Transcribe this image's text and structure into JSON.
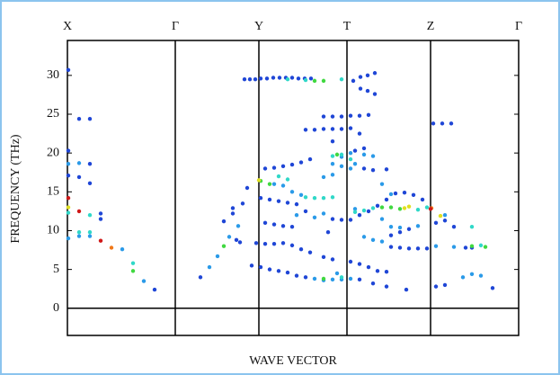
{
  "chart_data": {
    "type": "scatter",
    "xlabel": "WAVE VECTOR",
    "ylabel": "FREQUENCY (THz)",
    "xlim": [
      0,
      5.02
    ],
    "ylim": [
      -3.5,
      34.5
    ],
    "xticks": [
      {
        "value": 0,
        "label": "X"
      },
      {
        "value": 1.2,
        "label": "Γ"
      },
      {
        "value": 2.13,
        "label": "Y"
      },
      {
        "value": 3.11,
        "label": "T"
      },
      {
        "value": 4.04,
        "label": "Z"
      },
      {
        "value": 5.02,
        "label": "Γ"
      }
    ],
    "yticks": [
      0,
      5,
      10,
      15,
      20,
      25,
      30
    ],
    "zero_line": true,
    "series": [
      {
        "color": "#1f46d6",
        "x": [
          0.01,
          0.13,
          0.25,
          0.01,
          0.25,
          0.01,
          0.13,
          0.25,
          0.37,
          0.37,
          0.97,
          1.48,
          1.74,
          1.84,
          1.84,
          1.95,
          2.0,
          1.88,
          1.92,
          1.97,
          2.03,
          2.09,
          2.15,
          2.22,
          2.29,
          2.36,
          2.43,
          2.5,
          2.57,
          2.64,
          2.71,
          3.18,
          3.26,
          3.34,
          3.42,
          3.42,
          3.34,
          3.26,
          2.65,
          2.75,
          2.85,
          2.95,
          2.85,
          2.95,
          3.05,
          3.15,
          3.25,
          3.35,
          3.05,
          3.15,
          3.25,
          4.07,
          4.17,
          4.27,
          2.2,
          2.3,
          2.4,
          2.5,
          2.6,
          2.7,
          3.2,
          3.3,
          2.95,
          3.3,
          3.4,
          3.55,
          2.15,
          2.25,
          2.35,
          2.45,
          2.55,
          2.65,
          2.95,
          3.05,
          3.15,
          2.2,
          2.3,
          2.4,
          2.5,
          2.9,
          2.1,
          2.2,
          2.3,
          2.4,
          2.5,
          2.6,
          2.7,
          2.85,
          2.95,
          2.05,
          2.15,
          2.25,
          2.35,
          2.45,
          2.55,
          2.65,
          3.15,
          3.25,
          3.35,
          3.45,
          3.55,
          3.25,
          3.4,
          3.55,
          3.77,
          3.25,
          3.35,
          3.45,
          3.55,
          3.65,
          3.75,
          3.85,
          3.95,
          3.6,
          3.7,
          3.8,
          4.1,
          4.2,
          4.3,
          4.43,
          4.5,
          4.1,
          4.2,
          4.73,
          3.6,
          3.7,
          3.8,
          3.9,
          4.0
        ],
        "values": [
          30.7,
          24.4,
          24.4,
          20.3,
          18.6,
          17.1,
          16.9,
          16.1,
          12.2,
          11.5,
          2.4,
          4.0,
          11.2,
          12.9,
          12.2,
          13.5,
          15.5,
          8.8,
          8.5,
          29.5,
          29.5,
          29.5,
          29.6,
          29.6,
          29.7,
          29.7,
          29.7,
          29.7,
          29.6,
          29.6,
          29.6,
          29.3,
          29.8,
          30.0,
          30.3,
          27.6,
          28.0,
          28.3,
          23.0,
          23.0,
          23.1,
          23.1,
          24.7,
          24.7,
          24.7,
          24.8,
          24.8,
          24.9,
          23.1,
          23.2,
          22.5,
          23.8,
          23.8,
          23.8,
          18.0,
          18.1,
          18.3,
          18.5,
          18.8,
          19.2,
          20.3,
          20.6,
          21.5,
          18.0,
          17.8,
          17.9,
          14.2,
          14.0,
          13.8,
          13.6,
          13.4,
          12.5,
          11.5,
          11.4,
          11.4,
          11.0,
          10.8,
          10.6,
          10.5,
          9.8,
          8.4,
          8.3,
          8.3,
          8.4,
          8.1,
          7.6,
          7.2,
          6.6,
          6.3,
          5.5,
          5.3,
          5.0,
          4.8,
          4.6,
          4.2,
          4.0,
          6.0,
          5.7,
          5.3,
          4.8,
          4.7,
          3.7,
          3.2,
          2.8,
          2.4,
          12.0,
          12.5,
          13.2,
          14.0,
          14.8,
          14.9,
          14.6,
          14.0,
          9.4,
          9.8,
          10.2,
          11.0,
          11.3,
          10.5,
          7.8,
          7.8,
          2.8,
          3.0,
          2.6,
          7.9,
          7.8,
          7.7,
          7.7,
          7.7
        ]
      },
      {
        "color": "#2a9ae8",
        "x": [
          0.13,
          0.01,
          0.13,
          0.25,
          0.01,
          0.61,
          0.85,
          1.58,
          1.67,
          1.8,
          1.9,
          2.55,
          2.75,
          2.85,
          2.95,
          3.05,
          3.15,
          3.2,
          3.5,
          3.6,
          3.2,
          3.5,
          3.6,
          3.7,
          3.9,
          4.1,
          4.3,
          4.2,
          4.4,
          4.6,
          4.5,
          3.3,
          3.4,
          3.5,
          2.75,
          2.85,
          2.95,
          3.05,
          3.15,
          3.0,
          2.3,
          2.4,
          2.5,
          2.6,
          2.85,
          2.95,
          3.05,
          3.15,
          3.3,
          3.4
        ],
        "values": [
          18.7,
          18.6,
          9.3,
          9.3,
          9.0,
          7.6,
          3.5,
          5.3,
          6.7,
          9.2,
          10.6,
          12.0,
          11.7,
          12.2,
          18.6,
          18.3,
          18.0,
          18.6,
          16.0,
          14.7,
          12.8,
          11.5,
          10.5,
          10.4,
          10.6,
          8.0,
          7.9,
          12.0,
          4.0,
          4.2,
          4.4,
          9.2,
          8.8,
          8.6,
          3.8,
          3.6,
          3.7,
          3.7,
          3.8,
          4.5,
          16.0,
          15.8,
          15.0,
          14.6,
          16.9,
          17.2,
          19.5,
          20.0,
          19.8,
          19.6
        ]
      },
      {
        "color": "#30d8c8",
        "x": [
          0.01,
          0.25,
          0.25,
          0.13,
          0.73,
          2.35,
          2.45,
          2.65,
          2.75,
          2.85,
          2.95,
          2.95,
          3.05,
          3.15,
          3.2,
          3.3,
          3.4,
          3.9,
          4.0,
          3.05,
          3.05,
          4.5,
          4.6,
          2.65,
          2.45
        ],
        "values": [
          12.3,
          12.0,
          9.8,
          9.8,
          5.8,
          17.0,
          16.6,
          14.3,
          14.2,
          14.2,
          14.3,
          19.6,
          19.8,
          19.2,
          12.4,
          12.6,
          12.9,
          12.7,
          13.0,
          29.5,
          4.0,
          10.5,
          8.1,
          29.4,
          29.5
        ]
      },
      {
        "color": "#40d840",
        "x": [
          0.73,
          1.74,
          2.75,
          2.85,
          2.15,
          2.25,
          3.5,
          3.6,
          3.7,
          4.5,
          4.65,
          2.85,
          3.0
        ],
        "values": [
          4.8,
          8.0,
          29.3,
          29.3,
          16.4,
          16.0,
          13.0,
          13.0,
          12.8,
          8.0,
          7.9,
          3.8,
          19.8
        ]
      },
      {
        "color": "#e0e020",
        "x": [
          0.01,
          2.13,
          3.75,
          4.15,
          3.8
        ],
        "values": [
          13.0,
          16.5,
          12.9,
          11.9,
          13.1
        ]
      },
      {
        "color": "#f07818",
        "x": [
          0.49,
          4.05
        ],
        "values": [
          7.8,
          12.9
        ]
      },
      {
        "color": "#d01818",
        "x": [
          0.01,
          0.13,
          0.37,
          4.04
        ],
        "values": [
          14.2,
          12.5,
          8.7,
          12.8
        ]
      }
    ]
  }
}
